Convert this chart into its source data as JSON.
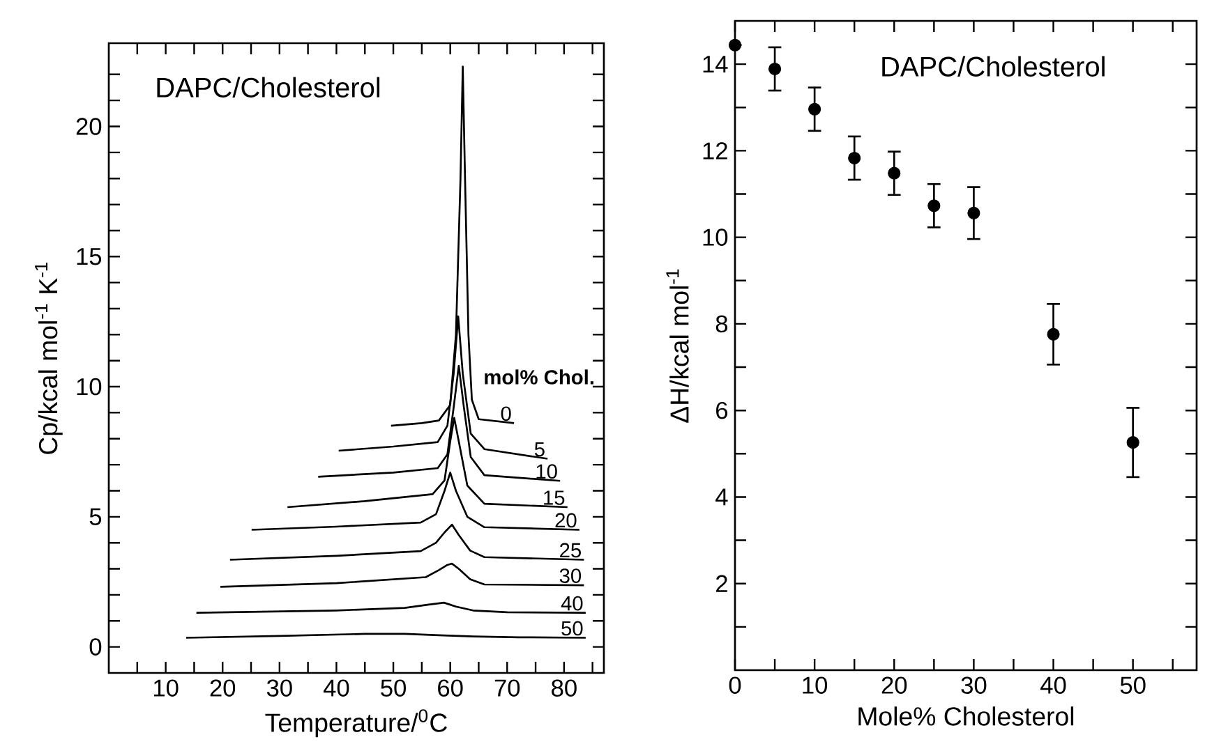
{
  "chart_data": [
    {
      "type": "line",
      "title": "DAPC/Cholesterol",
      "xlabel": "Temperature/$^{0}$C",
      "ylabel": "Cp/kcal mol$^{-1}$ K$^{-1}$",
      "legend_title": "mol% Chol.",
      "xlim": [
        0,
        87
      ],
      "ylim": [
        -1,
        23.2
      ],
      "xticks": [
        {
          "value": 5,
          "label": null
        },
        10,
        {
          "value": 15,
          "label": null
        },
        20,
        {
          "value": 25,
          "label": null
        },
        30,
        {
          "value": 35,
          "label": null
        },
        40,
        {
          "value": 45,
          "label": null
        },
        50,
        {
          "value": 55,
          "label": null
        },
        60,
        {
          "value": 65,
          "label": null
        },
        70,
        {
          "value": 75,
          "label": null
        },
        80,
        {
          "value": 85,
          "label": null
        }
      ],
      "yticks": [
        0,
        {
          "value": 1,
          "label": null
        },
        {
          "value": 2,
          "label": null
        },
        {
          "value": 3,
          "label": null
        },
        {
          "value": 4,
          "label": null
        },
        5,
        {
          "value": 6,
          "label": null
        },
        {
          "value": 7,
          "label": null
        },
        {
          "value": 8,
          "label": null
        },
        {
          "value": 9,
          "label": null
        },
        10,
        {
          "value": 11,
          "label": null
        },
        {
          "value": 12,
          "label": null
        },
        {
          "value": 13,
          "label": null
        },
        {
          "value": 14,
          "label": null
        },
        15,
        {
          "value": 16,
          "label": null
        },
        {
          "value": 17,
          "label": null
        },
        {
          "value": 18,
          "label": null
        },
        {
          "value": 19,
          "label": null
        },
        20,
        {
          "value": 21,
          "label": null
        },
        {
          "value": 22,
          "label": null
        }
      ],
      "grid": false,
      "legend": "right",
      "marker": "none",
      "line_style": "solid",
      "series": [
        {
          "name": "0",
          "color": "#000000",
          "x": [
            49.6,
            55,
            58,
            60,
            61,
            61.8,
            62.2,
            62.6,
            63.2,
            63.8,
            65,
            71.2
          ],
          "values": [
            8.5,
            8.6,
            8.7,
            9.3,
            12,
            18,
            22.3,
            18,
            12,
            9.5,
            8.75,
            8.6
          ]
        },
        {
          "name": "5",
          "color": "#000000",
          "x": [
            40.4,
            50,
            57.8,
            59.5,
            60.6,
            61.4,
            62.2,
            63.6,
            66,
            77.1
          ],
          "values": [
            7.54,
            7.7,
            7.87,
            8.5,
            10.5,
            12.7,
            10.5,
            8.2,
            7.6,
            7.23
          ]
        },
        {
          "name": "10",
          "color": "#000000",
          "x": [
            36.8,
            50,
            57.8,
            59.5,
            60.6,
            61.5,
            62.4,
            63.6,
            66,
            79.3
          ],
          "values": [
            6.54,
            6.7,
            6.87,
            7.4,
            9.2,
            10.8,
            9.2,
            7.3,
            6.6,
            6.38
          ]
        },
        {
          "name": "15",
          "color": "#000000",
          "x": [
            31.4,
            45,
            56.9,
            59,
            60,
            60.7,
            61.5,
            63,
            66,
            80.6
          ],
          "values": [
            5.37,
            5.6,
            5.87,
            6.4,
            7.9,
            8.8,
            7.9,
            6.2,
            5.5,
            5.37
          ]
        },
        {
          "name": "20",
          "color": "#000000",
          "x": [
            25.1,
            40,
            54.8,
            57.5,
            59,
            60,
            61,
            63,
            66,
            82.7
          ],
          "values": [
            4.5,
            4.62,
            4.78,
            5.1,
            6.0,
            6.7,
            6.0,
            5.0,
            4.6,
            4.5
          ]
        },
        {
          "name": "25",
          "color": "#000000",
          "x": [
            21.3,
            40,
            54.8,
            57.5,
            59,
            60.3,
            61.5,
            63.5,
            66,
            83.5
          ],
          "values": [
            3.35,
            3.5,
            3.68,
            4.0,
            4.4,
            4.7,
            4.3,
            3.7,
            3.45,
            3.35
          ]
        },
        {
          "name": "30",
          "color": "#000000",
          "x": [
            19.6,
            40,
            55.7,
            58,
            59.5,
            60.3,
            61.5,
            63.5,
            66,
            83.5
          ],
          "values": [
            2.31,
            2.45,
            2.68,
            2.95,
            3.15,
            3.2,
            3.0,
            2.6,
            2.4,
            2.37
          ]
        },
        {
          "name": "40",
          "color": "#000000",
          "x": [
            15.4,
            40,
            52,
            56,
            58.9,
            61,
            64,
            70,
            83.8
          ],
          "values": [
            1.31,
            1.4,
            1.5,
            1.62,
            1.7,
            1.55,
            1.4,
            1.33,
            1.31
          ]
        },
        {
          "name": "50",
          "color": "#000000",
          "x": [
            13.6,
            30,
            45,
            52,
            58,
            64,
            72,
            83.8
          ],
          "values": [
            0.35,
            0.42,
            0.5,
            0.5,
            0.45,
            0.4,
            0.37,
            0.35
          ]
        }
      ]
    },
    {
      "type": "scatter",
      "title": "DAPC/Cholesterol",
      "xlabel": "Mole% Cholesterol",
      "ylabel": "ΔH/kcal mol$^{-1}$",
      "xlim": [
        0,
        58
      ],
      "ylim": [
        0,
        15
      ],
      "xticks": [
        0,
        {
          "value": 5,
          "label": null
        },
        10,
        {
          "value": 15,
          "label": null
        },
        20,
        {
          "value": 25,
          "label": null
        },
        30,
        {
          "value": 35,
          "label": null
        },
        40,
        {
          "value": 45,
          "label": null
        },
        50,
        {
          "value": 55,
          "label": null
        }
      ],
      "yticks": [
        {
          "value": 1,
          "label": null
        },
        2,
        {
          "value": 3,
          "label": null
        },
        4,
        {
          "value": 5,
          "label": null
        },
        6,
        {
          "value": 7,
          "label": null
        },
        8,
        {
          "value": 9,
          "label": null
        },
        10,
        {
          "value": 11,
          "label": null
        },
        12,
        {
          "value": 13,
          "label": null
        },
        14
      ],
      "grid": false,
      "legend": false,
      "marker": "circle",
      "x": [
        0,
        5,
        10,
        15,
        20,
        25,
        30,
        40,
        50
      ],
      "series": [
        {
          "color": "#000000",
          "values": [
            14.44,
            13.89,
            12.96,
            11.83,
            11.48,
            10.73,
            10.56,
            7.76,
            5.26
          ],
          "errors": [
            null,
            0.5,
            0.5,
            0.5,
            0.5,
            0.5,
            0.6,
            0.7,
            0.8
          ]
        }
      ]
    }
  ]
}
